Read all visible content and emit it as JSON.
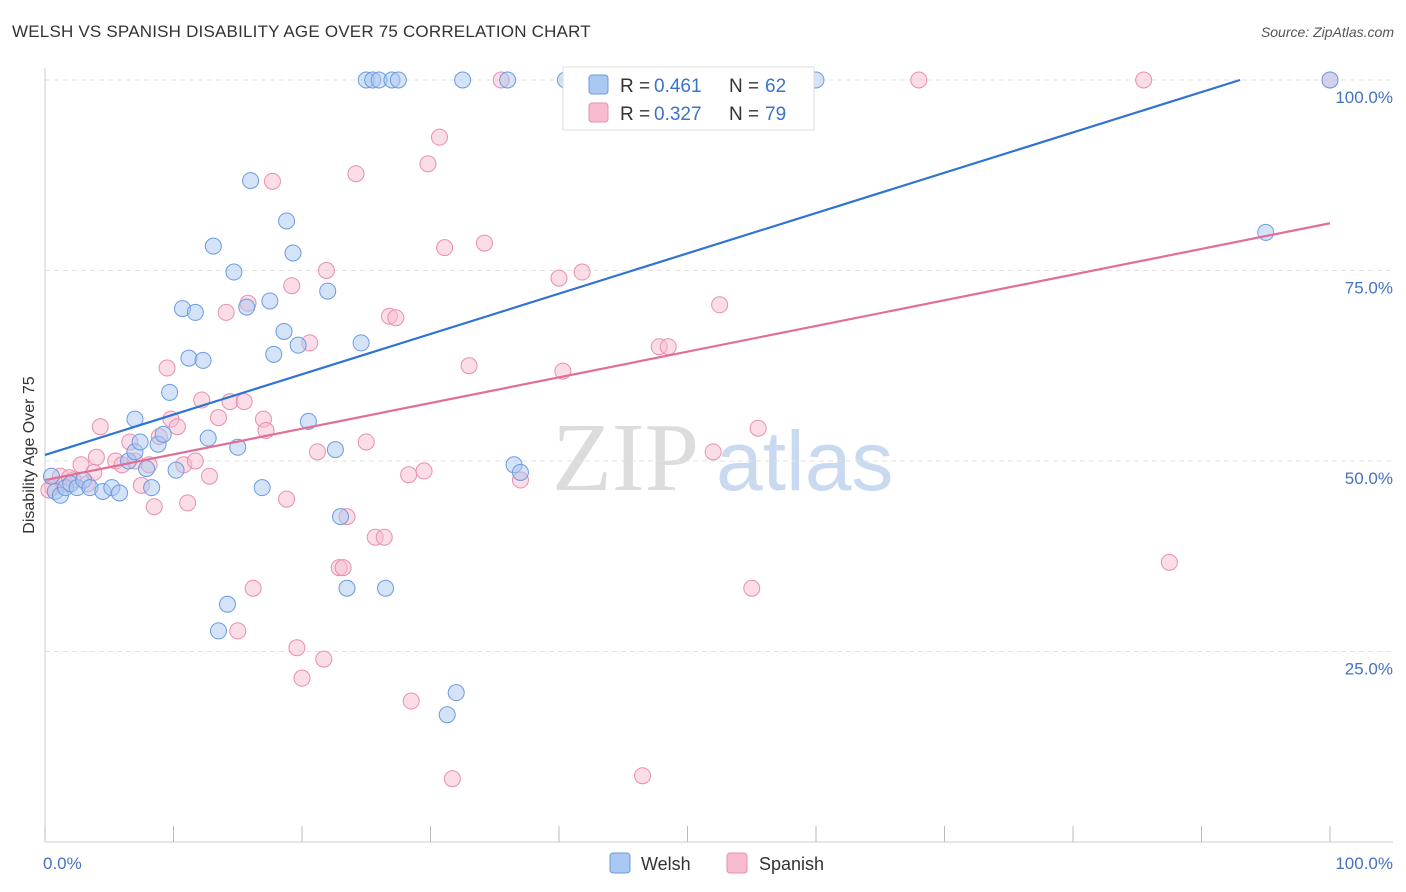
{
  "chart_data": {
    "type": "scatter",
    "title": "WELSH VS SPANISH DISABILITY AGE OVER 75 CORRELATION CHART",
    "source": "Source: ZipAtlas.com",
    "xlabel": "",
    "ylabel": "Disability Age Over 75",
    "xlim": [
      0,
      100
    ],
    "ylim": [
      0,
      100
    ],
    "x_tick_labels": [
      "0.0%",
      "100.0%"
    ],
    "y_ticks": [
      25,
      50,
      75,
      100
    ],
    "y_tick_labels": [
      "25.0%",
      "50.0%",
      "75.0%",
      "100.0%"
    ],
    "grid": true,
    "legend_position": "top-center",
    "watermark": "ZIPatlas",
    "colors": {
      "welsh_fill": "#a9c8f2",
      "welsh_stroke": "#6b9be0",
      "welsh_line": "#2f73d4",
      "spanish_fill": "#f7bcd0",
      "spanish_stroke": "#e98fae",
      "spanish_line": "#e06f97",
      "tick": "#4472c4"
    },
    "stats": [
      {
        "series": "Welsh",
        "r_label": "R =",
        "r_value": "0.461",
        "n_label": "N =",
        "n_value": "62"
      },
      {
        "series": "Spanish",
        "r_label": "R =",
        "r_value": "0.327",
        "n_label": "N =",
        "n_value": "79"
      }
    ],
    "series": [
      {
        "name": "Welsh",
        "trend": {
          "x": [
            0,
            93
          ],
          "y": [
            50.8,
            100
          ]
        },
        "points": [
          [
            0.5,
            48
          ],
          [
            0.8,
            46
          ],
          [
            1.2,
            45.5
          ],
          [
            1.6,
            46.5
          ],
          [
            2.0,
            47
          ],
          [
            2.5,
            46.5
          ],
          [
            3.0,
            47.5
          ],
          [
            3.5,
            46.5
          ],
          [
            4.5,
            46
          ],
          [
            5.2,
            46.5
          ],
          [
            5.8,
            45.8
          ],
          [
            6.5,
            50
          ],
          [
            7.0,
            51.2
          ],
          [
            7.0,
            55.5
          ],
          [
            7.4,
            52.5
          ],
          [
            7.9,
            49
          ],
          [
            8.3,
            46.5
          ],
          [
            8.8,
            52.2
          ],
          [
            9.2,
            53.5
          ],
          [
            9.7,
            59
          ],
          [
            10.2,
            48.8
          ],
          [
            10.7,
            70
          ],
          [
            11.2,
            63.5
          ],
          [
            11.7,
            69.5
          ],
          [
            12.3,
            63.2
          ],
          [
            12.7,
            53
          ],
          [
            13.1,
            78.2
          ],
          [
            13.5,
            27.7
          ],
          [
            14.2,
            31.2
          ],
          [
            14.7,
            74.8
          ],
          [
            15.0,
            51.8
          ],
          [
            15.7,
            70.2
          ],
          [
            16.0,
            86.8
          ],
          [
            16.9,
            46.5
          ],
          [
            17.5,
            71
          ],
          [
            17.8,
            64
          ],
          [
            18.6,
            67
          ],
          [
            18.8,
            81.5
          ],
          [
            19.3,
            77.3
          ],
          [
            19.7,
            65.2
          ],
          [
            20.5,
            55.2
          ],
          [
            22.0,
            72.3
          ],
          [
            22.6,
            51.5
          ],
          [
            23.0,
            42.7
          ],
          [
            23.5,
            33.3
          ],
          [
            24.6,
            65.5
          ],
          [
            25.0,
            100
          ],
          [
            25.5,
            100
          ],
          [
            26.0,
            100
          ],
          [
            26.5,
            33.3
          ],
          [
            27.0,
            100
          ],
          [
            27.5,
            100
          ],
          [
            31.3,
            16.7
          ],
          [
            32.0,
            19.6
          ],
          [
            32.5,
            100
          ],
          [
            36.0,
            100
          ],
          [
            36.5,
            49.5
          ],
          [
            37.0,
            48.5
          ],
          [
            40.5,
            100
          ],
          [
            60.0,
            100
          ],
          [
            95.0,
            80
          ],
          [
            100,
            100
          ]
        ]
      },
      {
        "name": "Spanish",
        "trend": {
          "x": [
            0,
            100
          ],
          "y": [
            47.5,
            81.2
          ]
        },
        "points": [
          [
            0.6,
            46.5
          ],
          [
            1.2,
            48
          ],
          [
            1.5,
            47
          ],
          [
            2.2,
            47.5
          ],
          [
            2.8,
            49.5
          ],
          [
            3.3,
            47
          ],
          [
            4.0,
            50.5
          ],
          [
            4.3,
            54.5
          ],
          [
            5.5,
            50
          ],
          [
            6.0,
            49.5
          ],
          [
            6.6,
            52.5
          ],
          [
            7.0,
            50
          ],
          [
            7.5,
            46.8
          ],
          [
            8.1,
            49.5
          ],
          [
            8.5,
            44
          ],
          [
            8.9,
            53.2
          ],
          [
            9.5,
            62.2
          ],
          [
            9.8,
            55.5
          ],
          [
            10.3,
            54.5
          ],
          [
            10.8,
            49.5
          ],
          [
            11.1,
            44.5
          ],
          [
            11.7,
            50
          ],
          [
            12.2,
            58
          ],
          [
            12.8,
            48
          ],
          [
            13.5,
            55.7
          ],
          [
            14.1,
            69.5
          ],
          [
            14.4,
            57.8
          ],
          [
            15.0,
            27.7
          ],
          [
            15.5,
            57.8
          ],
          [
            15.8,
            70.7
          ],
          [
            16.2,
            33.3
          ],
          [
            17.0,
            55.5
          ],
          [
            17.2,
            54
          ],
          [
            17.7,
            86.7
          ],
          [
            18.8,
            45
          ],
          [
            19.2,
            73
          ],
          [
            19.6,
            25.5
          ],
          [
            20.0,
            21.5
          ],
          [
            20.6,
            65.5
          ],
          [
            21.2,
            51.2
          ],
          [
            21.7,
            24
          ],
          [
            21.9,
            75
          ],
          [
            22.9,
            36
          ],
          [
            23.2,
            36
          ],
          [
            23.5,
            42.7
          ],
          [
            24.2,
            87.7
          ],
          [
            25.0,
            52.5
          ],
          [
            25.7,
            40
          ],
          [
            26.4,
            40
          ],
          [
            26.8,
            69
          ],
          [
            27.3,
            68.8
          ],
          [
            28.3,
            48.2
          ],
          [
            28.5,
            18.5
          ],
          [
            29.5,
            48.7
          ],
          [
            29.8,
            89
          ],
          [
            30.7,
            92.5
          ],
          [
            31.7,
            8.3
          ],
          [
            31.1,
            78
          ],
          [
            33.0,
            62.5
          ],
          [
            34.2,
            78.6
          ],
          [
            35.5,
            100
          ],
          [
            37.0,
            47.5
          ],
          [
            40.0,
            74
          ],
          [
            40.3,
            61.8
          ],
          [
            41.8,
            74.8
          ],
          [
            46.5,
            8.7
          ],
          [
            47.8,
            65
          ],
          [
            48.5,
            65
          ],
          [
            52.0,
            51.2
          ],
          [
            52.5,
            70.5
          ],
          [
            55.0,
            33.3
          ],
          [
            55.5,
            54.3
          ],
          [
            68.0,
            100
          ],
          [
            85.5,
            100
          ],
          [
            87.5,
            36.7
          ],
          [
            100,
            100
          ],
          [
            0.3,
            46.2
          ],
          [
            1.9,
            47.8
          ],
          [
            3.8,
            48.5
          ]
        ]
      }
    ]
  }
}
